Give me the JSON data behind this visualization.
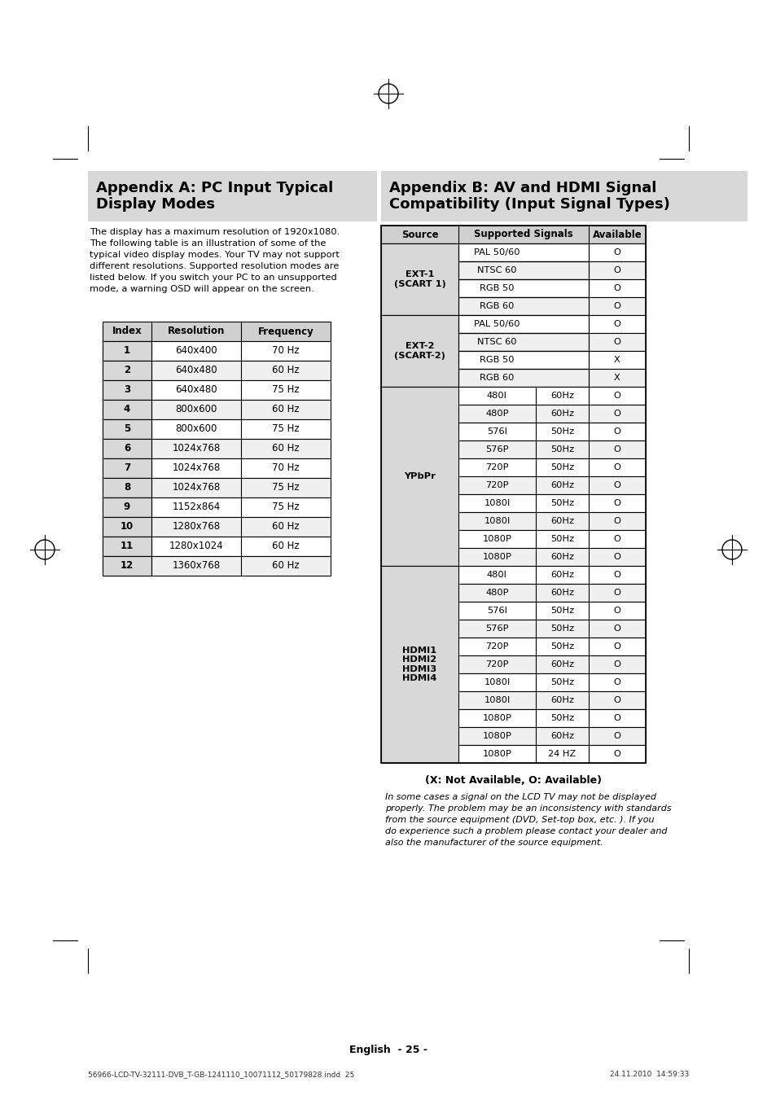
{
  "bg_color": "#ffffff",
  "appendix_a_title": "Appendix A: PC Input Typical\nDisplay Modes",
  "appendix_a_body": "The display has a maximum resolution of 1920x1080.\nThe following table is an illustration of some of the\ntypical video display modes. Your TV may not support\ndifferent resolutions. Supported resolution modes are\nlisted below. If you switch your PC to an unsupported\nmode, a warning OSD will appear on the screen.",
  "table_a_headers": [
    "Index",
    "Resolution",
    "Frequency"
  ],
  "table_a_rows": [
    [
      "1",
      "640x400",
      "70 Hz"
    ],
    [
      "2",
      "640x480",
      "60 Hz"
    ],
    [
      "3",
      "640x480",
      "75 Hz"
    ],
    [
      "4",
      "800x600",
      "60 Hz"
    ],
    [
      "5",
      "800x600",
      "75 Hz"
    ],
    [
      "6",
      "1024x768",
      "60 Hz"
    ],
    [
      "7",
      "1024x768",
      "70 Hz"
    ],
    [
      "8",
      "1024x768",
      "75 Hz"
    ],
    [
      "9",
      "1152x864",
      "75 Hz"
    ],
    [
      "10",
      "1280x768",
      "60 Hz"
    ],
    [
      "11",
      "1280x1024",
      "60 Hz"
    ],
    [
      "12",
      "1360x768",
      "60 Hz"
    ]
  ],
  "appendix_b_title": "Appendix B: AV and HDMI Signal\nCompatibility (Input Signal Types)",
  "table_b_rows": [
    [
      "EXT-1\n(SCART 1)",
      "PAL 50/60",
      "",
      "O"
    ],
    [
      "EXT-1\n(SCART 1)",
      "NTSC 60",
      "",
      "O"
    ],
    [
      "EXT-1\n(SCART 1)",
      "RGB 50",
      "",
      "O"
    ],
    [
      "EXT-1\n(SCART 1)",
      "RGB 60",
      "",
      "O"
    ],
    [
      "EXT-2\n(SCART-2)",
      "PAL 50/60",
      "",
      "O"
    ],
    [
      "EXT-2\n(SCART-2)",
      "NTSC 60",
      "",
      "O"
    ],
    [
      "EXT-2\n(SCART-2)",
      "RGB 50",
      "",
      "X"
    ],
    [
      "EXT-2\n(SCART-2)",
      "RGB 60",
      "",
      "X"
    ],
    [
      "YPbPr",
      "480I",
      "60Hz",
      "O"
    ],
    [
      "YPbPr",
      "480P",
      "60Hz",
      "O"
    ],
    [
      "YPbPr",
      "576I",
      "50Hz",
      "O"
    ],
    [
      "YPbPr",
      "576P",
      "50Hz",
      "O"
    ],
    [
      "YPbPr",
      "720P",
      "50Hz",
      "O"
    ],
    [
      "YPbPr",
      "720P",
      "60Hz",
      "O"
    ],
    [
      "YPbPr",
      "1080I",
      "50Hz",
      "O"
    ],
    [
      "YPbPr",
      "1080I",
      "60Hz",
      "O"
    ],
    [
      "YPbPr",
      "1080P",
      "50Hz",
      "O"
    ],
    [
      "YPbPr",
      "1080P",
      "60Hz",
      "O"
    ],
    [
      "HDMI1\nHDMI2\nHDMI3\nHDMI4",
      "480I",
      "60Hz",
      "O"
    ],
    [
      "HDMI1\nHDMI2\nHDMI3\nHDMI4",
      "480P",
      "60Hz",
      "O"
    ],
    [
      "HDMI1\nHDMI2\nHDMI3\nHDMI4",
      "576I",
      "50Hz",
      "O"
    ],
    [
      "HDMI1\nHDMI2\nHDMI3\nHDMI4",
      "576P",
      "50Hz",
      "O"
    ],
    [
      "HDMI1\nHDMI2\nHDMI3\nHDMI4",
      "720P",
      "50Hz",
      "O"
    ],
    [
      "HDMI1\nHDMI2\nHDMI3\nHDMI4",
      "720P",
      "60Hz",
      "O"
    ],
    [
      "HDMI1\nHDMI2\nHDMI3\nHDMI4",
      "1080I",
      "50Hz",
      "O"
    ],
    [
      "HDMI1\nHDMI2\nHDMI3\nHDMI4",
      "1080I",
      "60Hz",
      "O"
    ],
    [
      "HDMI1\nHDMI2\nHDMI3\nHDMI4",
      "1080P",
      "50Hz",
      "O"
    ],
    [
      "HDMI1\nHDMI2\nHDMI3\nHDMI4",
      "1080P",
      "60Hz",
      "O"
    ],
    [
      "HDMI1\nHDMI2\nHDMI3\nHDMI4",
      "1080P",
      "24 HZ",
      "O"
    ]
  ],
  "note_bold": "(X: Not Available, O: Available)",
  "note_italic": "In some cases a signal on the LCD TV may not be displayed\nproperly. The problem may be an inconsistency with standards\nfrom the source equipment (DVD, Set-top box, etc. ). If you\ndo experience such a problem please contact your dealer and\nalso the manufacturer of the source equipment.",
  "footer_text": "English  - 25 -",
  "footer_filename": "56966-LCD-TV-32111-DVB_T-GB-1241110_10071112_50179828.indd  25",
  "footer_date": "24.11.2010  14:59:33",
  "header_color": "#d0d0d0",
  "row_alt_color": "#f0f0f0",
  "row_white": "#ffffff",
  "source_col_color": "#d8d8d8",
  "border_color": "#000000",
  "title_bg_color": "#d8d8d8"
}
